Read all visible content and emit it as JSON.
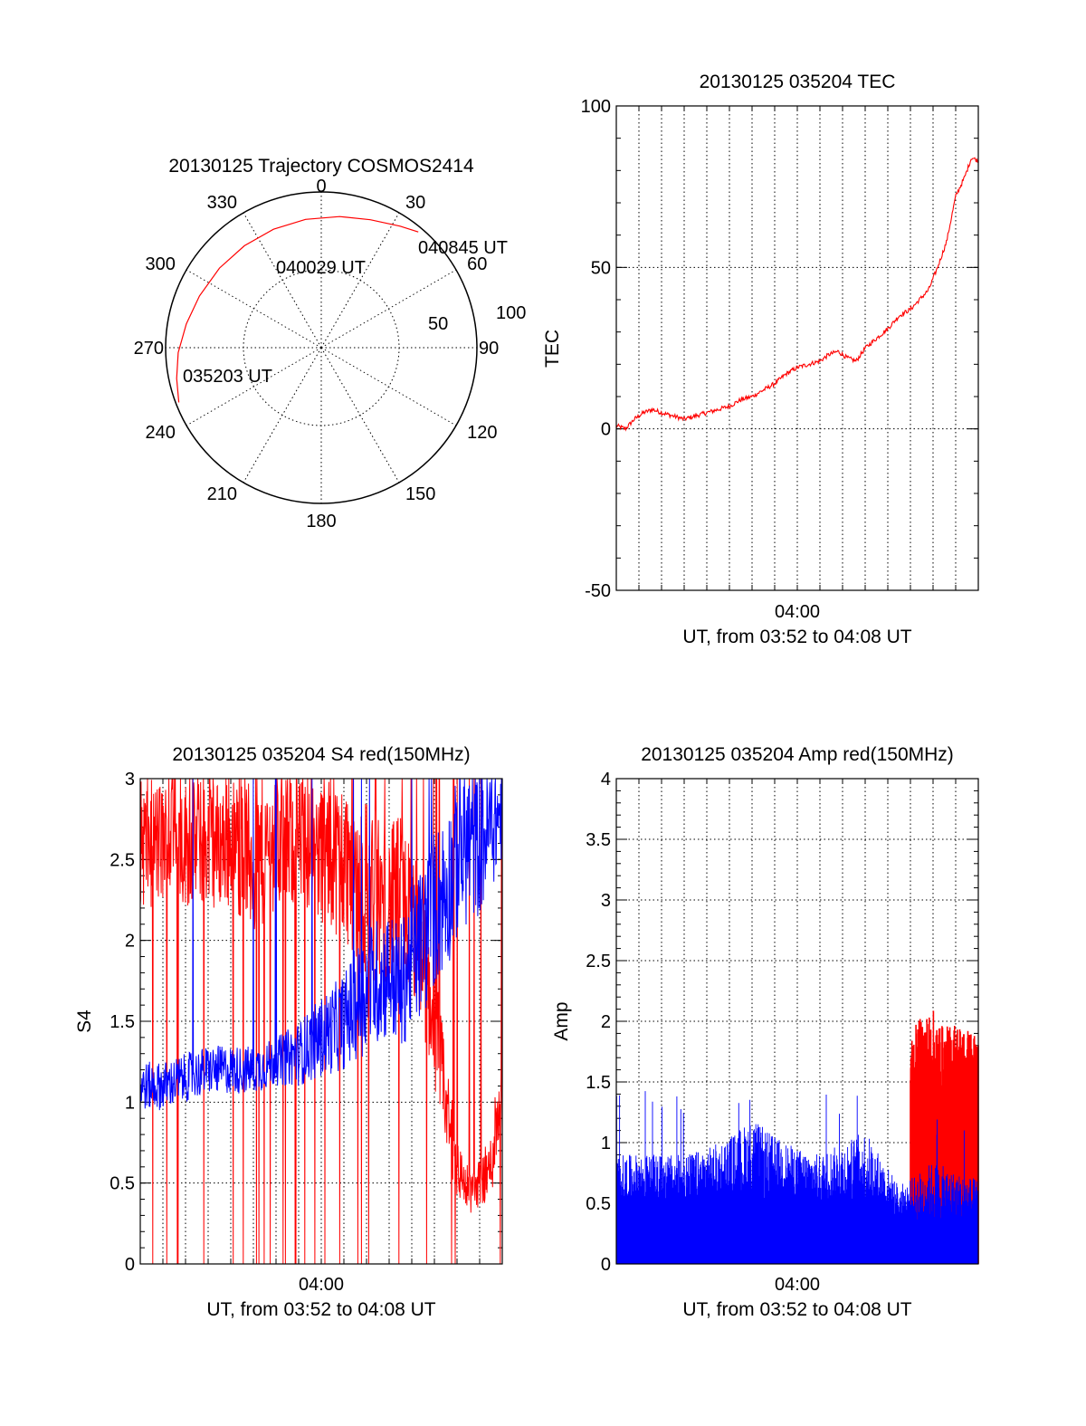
{
  "chart_data": [
    {
      "id": "trajectory",
      "type": "polar",
      "title": "20130125 Trajectory COSMOS2414",
      "angle_labels": [
        {
          "deg": 0,
          "text": "0"
        },
        {
          "deg": 30,
          "text": "30"
        },
        {
          "deg": 60,
          "text": "60"
        },
        {
          "deg": 90,
          "text": "90"
        },
        {
          "deg": 120,
          "text": "120"
        },
        {
          "deg": 150,
          "text": "150"
        },
        {
          "deg": 180,
          "text": "180"
        },
        {
          "deg": 210,
          "text": "210"
        },
        {
          "deg": 240,
          "text": "240"
        },
        {
          "deg": 270,
          "text": "270"
        },
        {
          "deg": 300,
          "text": "300"
        },
        {
          "deg": 330,
          "text": "330"
        }
      ],
      "radial_labels": [
        {
          "r": 50,
          "text": "50"
        },
        {
          "r": 100,
          "text": "100"
        }
      ],
      "r_max": 100,
      "track": [
        {
          "az": 249,
          "zd": 98
        },
        {
          "az": 258,
          "zd": 95
        },
        {
          "az": 268,
          "zd": 92
        },
        {
          "az": 280,
          "zd": 88
        },
        {
          "az": 293,
          "zd": 85
        },
        {
          "az": 308,
          "zd": 83
        },
        {
          "az": 323,
          "zd": 82
        },
        {
          "az": 338,
          "zd": 82
        },
        {
          "az": 353,
          "zd": 83
        },
        {
          "az": 8,
          "zd": 85
        },
        {
          "az": 21,
          "zd": 88
        },
        {
          "az": 33,
          "zd": 93
        },
        {
          "az": 40,
          "zd": 97
        }
      ],
      "annotations": [
        {
          "text": "035203 UT",
          "az": 249,
          "zd": 98
        },
        {
          "text": "040029 UT",
          "az": 335,
          "zd": 82
        },
        {
          "text": "040845 UT",
          "az": 40,
          "zd": 97
        }
      ],
      "track_color": "#ff0000"
    },
    {
      "id": "tec",
      "type": "line",
      "title": "20130125 035204 TEC",
      "ylabel": "TEC",
      "xlabel": "UT, from 03:52 to 04:08 UT",
      "x_ticks": [
        "04:00"
      ],
      "xlim_min": [
        0,
        16
      ],
      "ylim": [
        -50,
        100
      ],
      "y_ticks": [
        -50,
        0,
        50,
        100
      ],
      "series": [
        {
          "color": "#ff0000",
          "x": [
            0,
            0.4,
            0.8,
            1.2,
            1.6,
            2.0,
            2.5,
            3.0,
            3.5,
            4.0,
            4.5,
            5.0,
            5.5,
            6.0,
            6.5,
            7.0,
            7.5,
            8.0,
            8.5,
            9.0,
            9.4,
            9.8,
            10.2,
            10.6,
            11.0,
            11.5,
            12.0,
            12.5,
            13.0,
            13.4,
            13.8,
            14.2,
            14.6,
            15.0,
            15.4,
            15.7,
            16.0
          ],
          "y": [
            1,
            0,
            3,
            5,
            6,
            5,
            4,
            3,
            4,
            5,
            6,
            7,
            9,
            10,
            12,
            14,
            17,
            19,
            20,
            21,
            23,
            24,
            22,
            21,
            25,
            28,
            31,
            35,
            37,
            40,
            43,
            50,
            58,
            72,
            78,
            84,
            83
          ]
        }
      ]
    },
    {
      "id": "s4",
      "type": "line",
      "title": "20130125 035204 S4 red(150MHz)",
      "ylabel": "S4",
      "xlabel": "UT, from 03:52 to 04:08 UT",
      "x_ticks": [
        "04:00"
      ],
      "xlim_min": [
        0,
        16
      ],
      "ylim": [
        0,
        3
      ],
      "y_ticks": [
        "0",
        "0.5",
        "1",
        "1.5",
        "2",
        "2.5",
        "3"
      ],
      "series": [
        {
          "color": "#ff0000",
          "x": [
            0,
            1,
            2,
            3,
            4,
            5,
            6,
            7,
            8,
            9,
            10,
            11,
            11.5,
            12,
            12.5,
            13,
            13.5,
            14,
            14.5,
            15,
            15.5,
            16
          ],
          "base": [
            2.6,
            2.6,
            2.6,
            2.6,
            2.6,
            2.5,
            2.6,
            2.6,
            2.55,
            2.5,
            2.3,
            2.2,
            2.3,
            2.1,
            1.9,
            1.5,
            1.0,
            0.6,
            0.45,
            0.5,
            0.6,
            1.2
          ],
          "spread": [
            0.4,
            0.4,
            0.4,
            0.4,
            0.4,
            0.5,
            0.4,
            0.4,
            0.45,
            0.5,
            0.6,
            0.5,
            0.5,
            0.5,
            0.5,
            0.4,
            0.3,
            0.2,
            0.15,
            0.15,
            0.2,
            0.4
          ]
        },
        {
          "color": "#0000ff",
          "x": [
            0,
            1,
            2,
            3,
            4,
            5,
            6,
            7,
            8,
            9,
            10,
            11,
            11.5,
            12,
            12.5,
            13,
            13.5,
            14,
            14.5,
            15,
            15.5,
            16
          ],
          "base": [
            1.1,
            1.1,
            1.15,
            1.2,
            1.2,
            1.2,
            1.25,
            1.3,
            1.4,
            1.5,
            1.7,
            1.8,
            1.7,
            1.9,
            2.0,
            2.2,
            2.3,
            2.5,
            2.6,
            2.6,
            2.7,
            2.8
          ],
          "spread": [
            0.15,
            0.15,
            0.15,
            0.15,
            0.15,
            0.15,
            0.15,
            0.2,
            0.25,
            0.3,
            0.4,
            0.4,
            0.4,
            0.45,
            0.5,
            0.5,
            0.5,
            0.5,
            0.5,
            0.45,
            0.4,
            0.3
          ]
        }
      ]
    },
    {
      "id": "amp",
      "type": "area",
      "title": "20130125 035204 Amp red(150MHz)",
      "ylabel": "Amp",
      "xlabel": "UT, from 03:52 to 04:08 UT",
      "x_ticks": [
        "04:00"
      ],
      "xlim_min": [
        0,
        16
      ],
      "ylim": [
        0,
        4
      ],
      "y_ticks": [
        "0",
        "0.5",
        "1",
        "1.5",
        "2",
        "2.5",
        "3",
        "3.5",
        "4"
      ],
      "series": [
        {
          "color": "#ff0000",
          "x": [
            13.0,
            13.5,
            14.0,
            14.5,
            15.0,
            15.5,
            16.0
          ],
          "base": [
            1.6,
            1.7,
            1.7,
            1.6,
            1.7,
            1.6,
            1.6
          ],
          "spread": [
            0.3,
            0.35,
            0.4,
            0.35,
            0.3,
            0.35,
            0.3
          ]
        },
        {
          "color": "#0000ff",
          "x": [
            0,
            1,
            2,
            3,
            4,
            5,
            6,
            7,
            8,
            9,
            10,
            11,
            12,
            12.5,
            13,
            14,
            15,
            16
          ],
          "base": [
            0.7,
            0.7,
            0.7,
            0.7,
            0.75,
            0.8,
            0.85,
            0.8,
            0.75,
            0.7,
            0.75,
            0.8,
            0.6,
            0.5,
            0.5,
            0.6,
            0.55,
            0.5
          ],
          "spread": [
            0.2,
            0.2,
            0.2,
            0.2,
            0.2,
            0.25,
            0.35,
            0.25,
            0.2,
            0.2,
            0.25,
            0.3,
            0.2,
            0.15,
            0.2,
            0.25,
            0.2,
            0.2
          ]
        }
      ]
    }
  ]
}
